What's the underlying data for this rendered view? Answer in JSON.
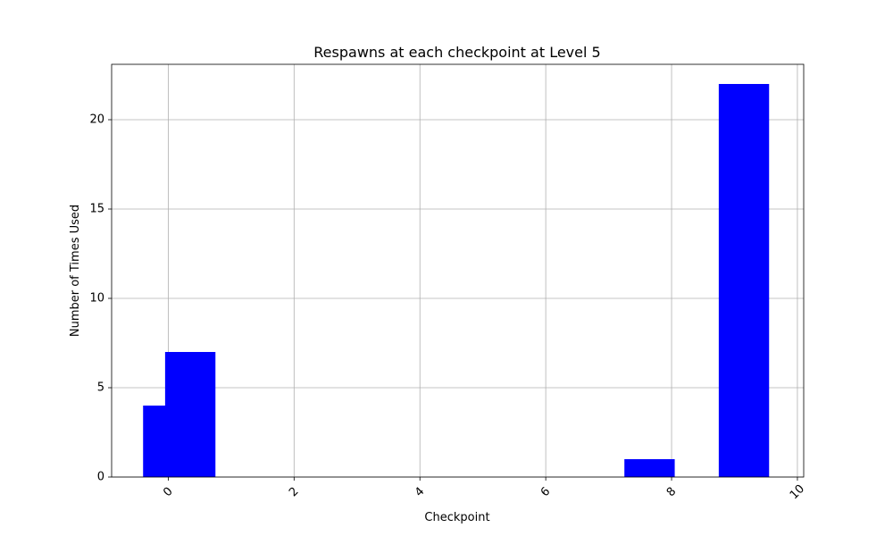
{
  "chart_data": {
    "type": "bar",
    "title": "Respawns at each checkpoint at Level 5",
    "xlabel": "Checkpoint",
    "ylabel": "Number of Times Used",
    "xlim": [
      -0.9,
      10.1
    ],
    "ylim": [
      0,
      23.1
    ],
    "xticks": [
      0,
      2,
      4,
      6,
      8,
      10
    ],
    "yticks": [
      0,
      5,
      10,
      15,
      20
    ],
    "xtick_rotation_deg": 45,
    "grid": true,
    "bar_color": "#0000ff",
    "bars": [
      {
        "x_start": -0.4,
        "x_end": 0.4,
        "value": 4
      },
      {
        "x_start": -0.05,
        "x_end": 0.75,
        "value": 7
      },
      {
        "x_start": 7.25,
        "x_end": 8.05,
        "value": 1
      },
      {
        "x_start": 8.75,
        "x_end": 9.55,
        "value": 22
      }
    ]
  }
}
